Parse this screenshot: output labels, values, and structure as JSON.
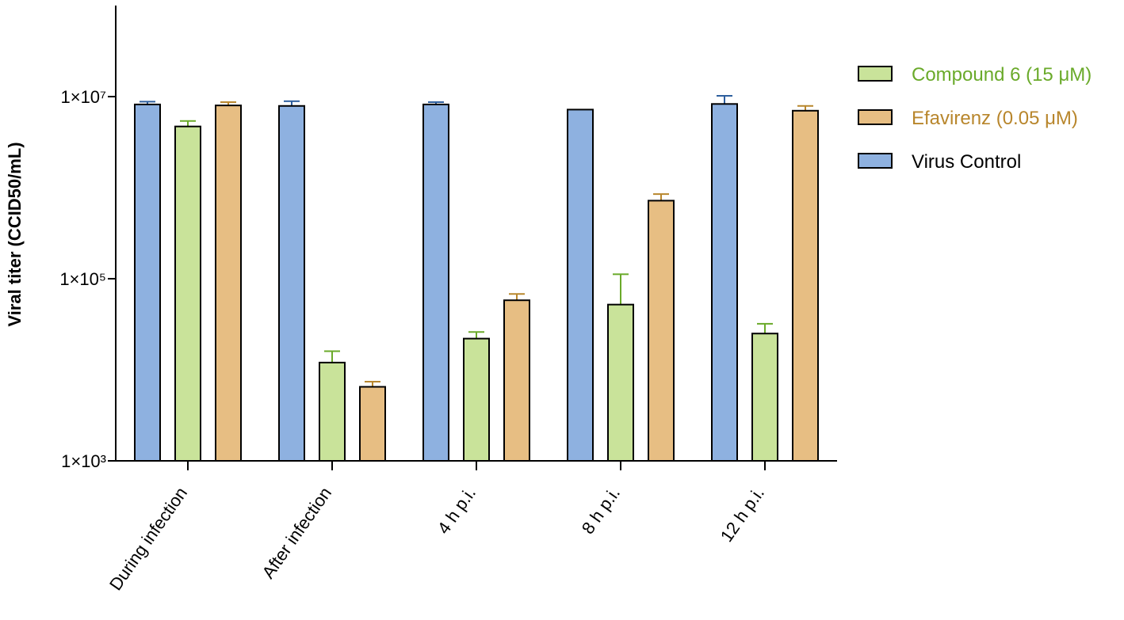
{
  "chart_data": {
    "type": "bar",
    "title": "",
    "xlabel": "",
    "ylabel": "Viral titer (CCID50/mL)",
    "yscale": "log",
    "ylim": [
      1000,
      100000000
    ],
    "yticks": [
      {
        "value": 1000,
        "label": "1×10³"
      },
      {
        "value": 100000,
        "label": "1×10⁵"
      },
      {
        "value": 10000000,
        "label": "1×10⁷"
      }
    ],
    "categories": [
      "During infection",
      "After infection",
      "4 h p.i.",
      "8 h p.i.",
      "12 h p.i."
    ],
    "series": [
      {
        "name": "Virus Control",
        "color": "#8eb1e0",
        "error_color": "#2e5f9e",
        "values": [
          8200000,
          7900000,
          8200000,
          7200000,
          8300000
        ],
        "errors": [
          600000,
          1000000,
          500000,
          0,
          1900000
        ]
      },
      {
        "name": "Compound 6 (15 μM)",
        "color": "#c9e39a",
        "error_color": "#6aaa2a",
        "values": [
          4700000,
          12000,
          22000,
          52000,
          25000
        ],
        "errors": [
          700000,
          4000,
          4000,
          60000,
          7000
        ]
      },
      {
        "name": "Efavirenz (0.05 μM)",
        "color": "#e7be83",
        "error_color": "#b8862c",
        "values": [
          8000000,
          6500,
          58000,
          720000,
          7000000
        ],
        "errors": [
          700000,
          900,
          10000,
          130000,
          900000
        ]
      }
    ],
    "legend": {
      "position": "top-right",
      "order": [
        "Compound 6 (15 μM)",
        "Efavirenz (0.05 μM)",
        "Virus Control"
      ],
      "label_colors": [
        "#6aaa2a",
        "#b8862c",
        "#000000"
      ]
    }
  }
}
